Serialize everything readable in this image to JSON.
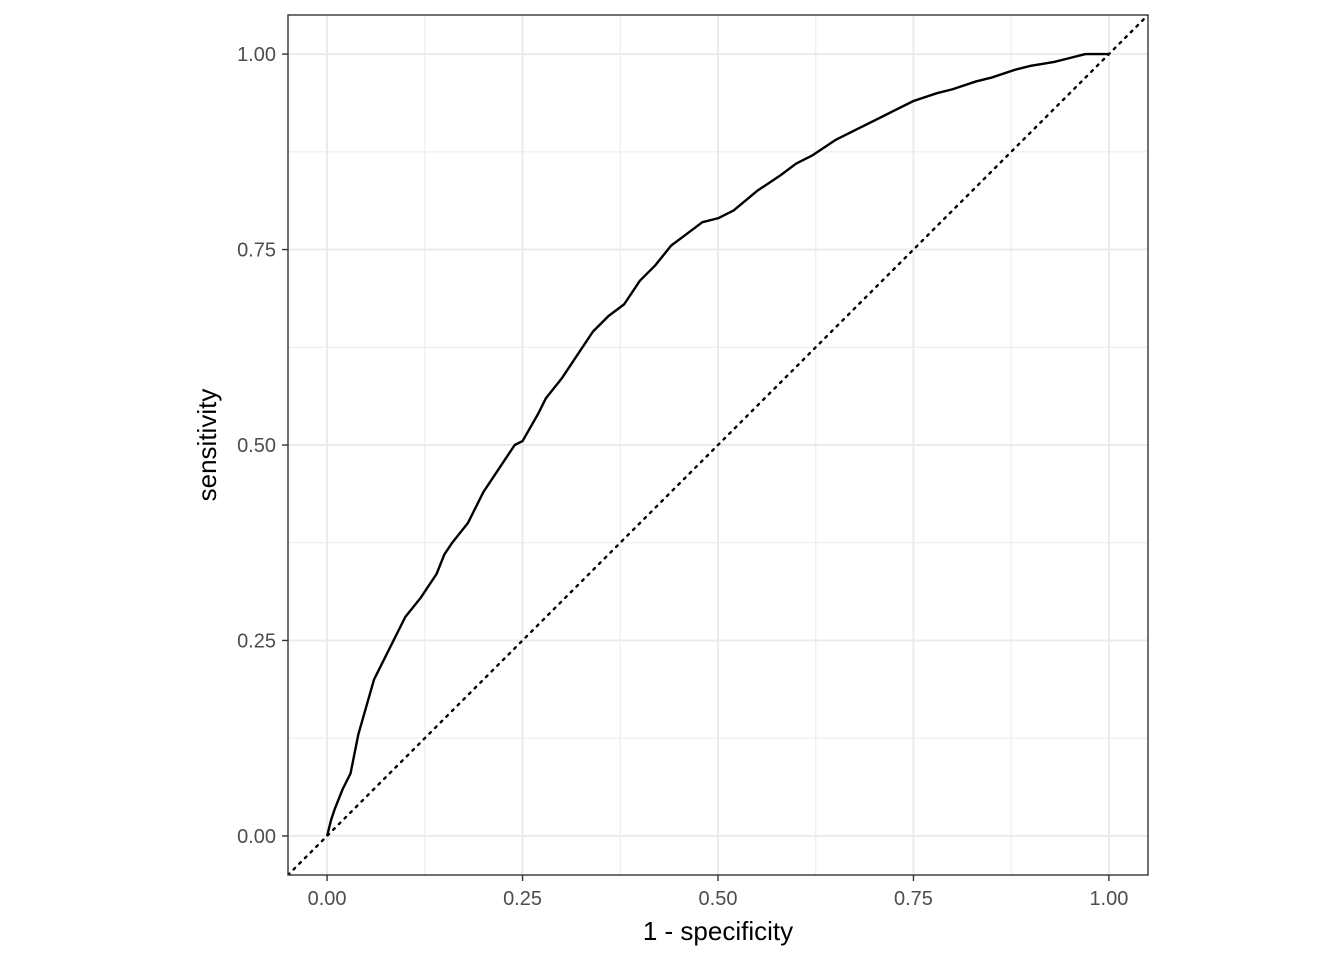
{
  "chart_data": {
    "type": "line",
    "title": "",
    "xlabel": "1 - specificity",
    "ylabel": "sensitivity",
    "xlim": [
      -0.05,
      1.05
    ],
    "ylim": [
      -0.05,
      1.05
    ],
    "grid": true,
    "x_ticks": [
      0,
      0.25,
      0.5,
      0.75,
      1
    ],
    "x_tick_labels": [
      "0.00",
      "0.25",
      "0.50",
      "0.75",
      "1.00"
    ],
    "y_ticks": [
      0,
      0.25,
      0.5,
      0.75,
      1
    ],
    "y_tick_labels": [
      "0.00",
      "0.25",
      "0.50",
      "0.75",
      "1.00"
    ],
    "series": [
      {
        "x": [
          0,
          0.005,
          0.01,
          0.02,
          0.03,
          0.04,
          0.05,
          0.06,
          0.07,
          0.08,
          0.09,
          0.1,
          0.12,
          0.14,
          0.15,
          0.16,
          0.18,
          0.2,
          0.22,
          0.24,
          0.25,
          0.27,
          0.28,
          0.3,
          0.32,
          0.34,
          0.36,
          0.38,
          0.4,
          0.42,
          0.44,
          0.46,
          0.48,
          0.5,
          0.52,
          0.55,
          0.58,
          0.6,
          0.62,
          0.65,
          0.68,
          0.7,
          0.72,
          0.75,
          0.78,
          0.8,
          0.83,
          0.85,
          0.88,
          0.9,
          0.93,
          0.95,
          0.97,
          1
        ],
        "y": [
          0,
          0.02,
          0.035,
          0.06,
          0.08,
          0.13,
          0.165,
          0.2,
          0.22,
          0.24,
          0.26,
          0.28,
          0.305,
          0.335,
          0.36,
          0.375,
          0.4,
          0.44,
          0.47,
          0.5,
          0.505,
          0.54,
          0.56,
          0.585,
          0.615,
          0.645,
          0.665,
          0.68,
          0.71,
          0.73,
          0.755,
          0.77,
          0.785,
          0.79,
          0.8,
          0.825,
          0.845,
          0.86,
          0.87,
          0.89,
          0.905,
          0.915,
          0.925,
          0.94,
          0.95,
          0.955,
          0.965,
          0.97,
          0.98,
          0.985,
          0.99,
          0.995,
          1,
          1
        ]
      }
    ],
    "reference_line": {
      "x": [
        -0.05,
        1.05
      ],
      "y": [
        -0.05,
        1.05
      ],
      "style": "dotted"
    },
    "colors": {
      "curve": "#000000",
      "reference": "#000000",
      "grid": "#ebebeb",
      "border": "#333333",
      "tick_text": "#4d4d4d"
    }
  }
}
